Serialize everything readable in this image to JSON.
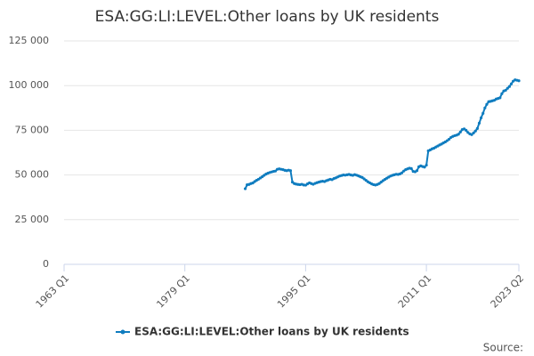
{
  "chart_data": {
    "type": "line",
    "title": "ESA:GG:LI:LEVEL:Other loans by UK residents",
    "source": "Source:",
    "xlim": [
      "1963 Q1",
      "2023 Q2"
    ],
    "xticks": [
      "1963 Q1",
      "1979 Q1",
      "1995 Q1",
      "2011 Q1",
      "2023 Q2"
    ],
    "ylim": [
      0,
      125000
    ],
    "yticks": [
      0,
      {
        "value": 25000,
        "label": "25 000"
      },
      {
        "value": 50000,
        "label": "50 000"
      },
      {
        "value": 75000,
        "label": "75 000"
      },
      {
        "value": 100000,
        "label": "100 000"
      },
      {
        "value": 125000,
        "label": "125 000"
      }
    ],
    "grid": true,
    "legend": "bottom",
    "x": [
      "1987 Q1",
      "1987 Q2",
      "1987 Q3",
      "1987 Q4",
      "1988 Q1",
      "1988 Q2",
      "1988 Q3",
      "1988 Q4",
      "1989 Q1",
      "1989 Q2",
      "1989 Q3",
      "1989 Q4",
      "1990 Q1",
      "1990 Q2",
      "1990 Q3",
      "1990 Q4",
      "1991 Q1",
      "1991 Q2",
      "1991 Q3",
      "1991 Q4",
      "1992 Q1",
      "1992 Q2",
      "1992 Q3",
      "1992 Q4",
      "1993 Q1",
      "1993 Q2",
      "1993 Q3",
      "1993 Q4",
      "1994 Q1",
      "1994 Q2",
      "1994 Q3",
      "1994 Q4",
      "1995 Q1",
      "1995 Q2",
      "1995 Q3",
      "1995 Q4",
      "1996 Q1",
      "1996 Q2",
      "1996 Q3",
      "1996 Q4",
      "1997 Q1",
      "1997 Q2",
      "1997 Q3",
      "1997 Q4",
      "1998 Q1",
      "1998 Q2",
      "1998 Q3",
      "1998 Q4",
      "1999 Q1",
      "1999 Q2",
      "1999 Q3",
      "1999 Q4",
      "2000 Q1",
      "2000 Q2",
      "2000 Q3",
      "2000 Q4",
      "2001 Q1",
      "2001 Q2",
      "2001 Q3",
      "2001 Q4",
      "2002 Q1",
      "2002 Q2",
      "2002 Q3",
      "2002 Q4",
      "2003 Q1",
      "2003 Q2",
      "2003 Q3",
      "2003 Q4",
      "2004 Q1",
      "2004 Q2",
      "2004 Q3",
      "2004 Q4",
      "2005 Q1",
      "2005 Q2",
      "2005 Q3",
      "2005 Q4",
      "2006 Q1",
      "2006 Q2",
      "2006 Q3",
      "2006 Q4",
      "2007 Q1",
      "2007 Q2",
      "2007 Q3",
      "2007 Q4",
      "2008 Q1",
      "2008 Q2",
      "2008 Q3",
      "2008 Q4",
      "2009 Q1",
      "2009 Q2",
      "2009 Q3",
      "2009 Q4",
      "2010 Q1",
      "2010 Q2",
      "2010 Q3",
      "2010 Q4",
      "2011 Q1",
      "2011 Q2",
      "2011 Q3",
      "2011 Q4",
      "2012 Q1",
      "2012 Q2",
      "2012 Q3",
      "2012 Q4",
      "2013 Q1",
      "2013 Q2",
      "2013 Q3",
      "2013 Q4",
      "2014 Q1",
      "2014 Q2",
      "2014 Q3",
      "2014 Q4",
      "2015 Q1",
      "2015 Q2",
      "2015 Q3",
      "2015 Q4",
      "2016 Q1",
      "2016 Q2",
      "2016 Q3",
      "2016 Q4",
      "2017 Q1",
      "2017 Q2",
      "2017 Q3",
      "2017 Q4",
      "2018 Q1",
      "2018 Q2",
      "2018 Q3",
      "2018 Q4",
      "2019 Q1",
      "2019 Q2",
      "2019 Q3",
      "2019 Q4",
      "2020 Q1",
      "2020 Q2",
      "2020 Q3",
      "2020 Q4",
      "2021 Q1",
      "2021 Q2",
      "2021 Q3",
      "2021 Q4",
      "2022 Q1",
      "2022 Q2",
      "2022 Q3",
      "2022 Q4",
      "2023 Q1",
      "2023 Q2"
    ],
    "series": [
      {
        "name": "ESA:GG:LI:LEVEL:Other loans by UK residents",
        "color": "#0f7cbf",
        "values": [
          42300,
          44500,
          44700,
          45200,
          45500,
          46300,
          47000,
          47600,
          48300,
          49000,
          49800,
          50500,
          51000,
          51400,
          51700,
          52000,
          52200,
          53200,
          53400,
          53200,
          53000,
          52600,
          52400,
          52700,
          52400,
          46000,
          45200,
          44900,
          44700,
          44600,
          44800,
          44400,
          44300,
          45000,
          45600,
          45200,
          44800,
          45300,
          45700,
          46000,
          46300,
          46500,
          46300,
          46800,
          47200,
          47600,
          47400,
          48000,
          48400,
          48900,
          49400,
          49700,
          50000,
          49900,
          50100,
          50300,
          50000,
          49800,
          50200,
          49900,
          49500,
          49000,
          48600,
          47800,
          47000,
          46200,
          45600,
          45000,
          44600,
          44400,
          44700,
          45200,
          46000,
          46800,
          47500,
          48200,
          48800,
          49400,
          49800,
          50100,
          50400,
          50300,
          50600,
          51200,
          52200,
          53000,
          53400,
          53800,
          53600,
          52000,
          51800,
          52400,
          54600,
          55100,
          54700,
          54400,
          55500,
          63500,
          64000,
          64600,
          65000,
          65600,
          66200,
          66800,
          67300,
          67900,
          68500,
          69200,
          70000,
          71000,
          71600,
          72000,
          72300,
          72800,
          74000,
          75400,
          75800,
          75000,
          73800,
          73000,
          72600,
          73500,
          74600,
          76000,
          79000,
          82000,
          84500,
          87500,
          89500,
          91000,
          91200,
          91500,
          91800,
          92500,
          92800,
          93200,
          95500,
          97000,
          97400,
          98500,
          99500,
          101000,
          102500,
          103200,
          103000,
          102700
        ]
      }
    ]
  }
}
